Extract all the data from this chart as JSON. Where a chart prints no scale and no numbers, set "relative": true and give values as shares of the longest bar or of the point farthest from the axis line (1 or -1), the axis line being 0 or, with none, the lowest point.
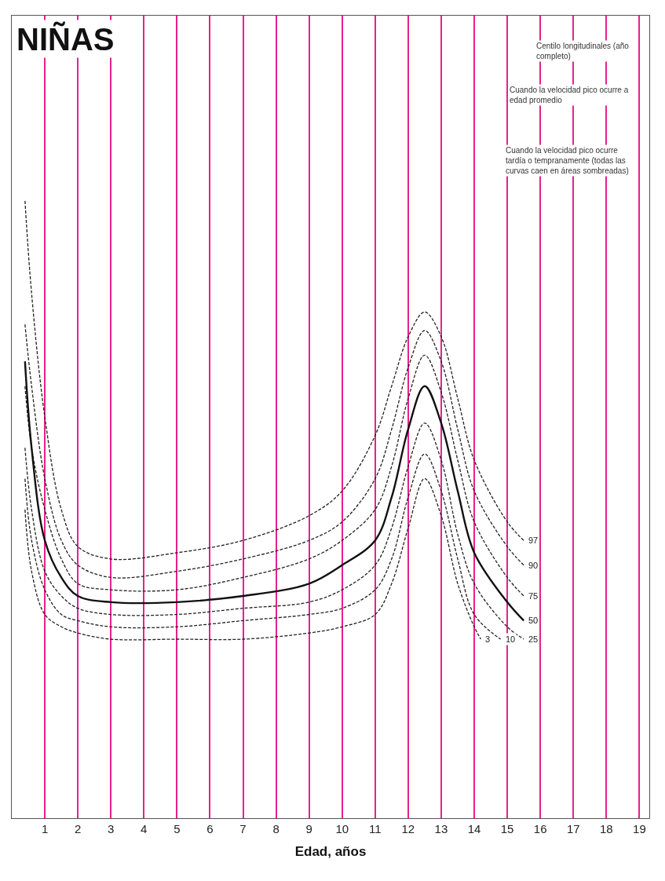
{
  "chart_data": {
    "type": "line",
    "title": "NIÑAS",
    "xlabel": "Edad, años",
    "relative": true,
    "xlim": [
      0,
      19.3
    ],
    "xticks": [
      1,
      2,
      3,
      4,
      5,
      6,
      7,
      8,
      9,
      10,
      11,
      12,
      13,
      14,
      15,
      16,
      17,
      18,
      19
    ],
    "grid": "x",
    "annotations": [
      "Centilo longitudinales (año completo)",
      "Cuando la velocidad pico ocurre a edad promedio",
      "Cuando la velocidad pico ocurre tardía o tempranamente (todas las curvas caen en áreas sombreadas)"
    ],
    "series": [
      {
        "name": "97",
        "color": "#222222",
        "line_style": "dashed",
        "x": [
          0.4,
          0.6,
          1,
          1.5,
          2,
          3,
          5,
          7,
          9,
          10,
          11,
          11.5,
          12,
          12.5,
          13,
          13.5,
          14,
          15,
          15.5
        ],
        "values": [
          1.0,
          0.85,
          0.65,
          0.5,
          0.44,
          0.42,
          0.43,
          0.45,
          0.49,
          0.53,
          0.62,
          0.7,
          0.78,
          0.82,
          0.78,
          0.68,
          0.58,
          0.48,
          0.45
        ]
      },
      {
        "name": "90",
        "color": "#222222",
        "line_style": "dashed",
        "x": [
          0.4,
          0.6,
          1,
          1.5,
          2,
          3,
          5,
          7,
          9,
          10,
          11,
          11.5,
          12,
          12.5,
          13,
          13.5,
          14,
          15,
          15.5
        ],
        "values": [
          0.8,
          0.7,
          0.55,
          0.45,
          0.41,
          0.39,
          0.4,
          0.42,
          0.45,
          0.48,
          0.55,
          0.63,
          0.73,
          0.79,
          0.74,
          0.63,
          0.53,
          0.44,
          0.41
        ]
      },
      {
        "name": "75",
        "color": "#222222",
        "line_style": "dashed",
        "x": [
          0.4,
          0.6,
          1,
          1.5,
          2,
          3,
          5,
          7,
          9,
          10,
          11,
          11.5,
          12,
          12.5,
          13,
          13.5,
          14,
          15,
          15.5
        ],
        "values": [
          0.7,
          0.6,
          0.5,
          0.42,
          0.38,
          0.37,
          0.37,
          0.39,
          0.42,
          0.45,
          0.5,
          0.57,
          0.68,
          0.75,
          0.69,
          0.58,
          0.48,
          0.39,
          0.36
        ]
      },
      {
        "name": "50",
        "color": "#111111",
        "line_style": "solid",
        "x": [
          0.4,
          0.6,
          1,
          1.5,
          2,
          3,
          5,
          7,
          9,
          10,
          11,
          11.5,
          12,
          12.5,
          13,
          13.5,
          14,
          15,
          15.5
        ],
        "values": [
          0.74,
          0.6,
          0.45,
          0.39,
          0.36,
          0.35,
          0.35,
          0.36,
          0.38,
          0.41,
          0.45,
          0.52,
          0.63,
          0.7,
          0.64,
          0.53,
          0.43,
          0.35,
          0.32
        ]
      },
      {
        "name": "25",
        "color": "#222222",
        "line_style": "dashed",
        "x": [
          0.4,
          0.6,
          1,
          1.5,
          2,
          3,
          5,
          7,
          9,
          10,
          11,
          11.5,
          12,
          12.5,
          13,
          13.5,
          14,
          15,
          15.5
        ],
        "values": [
          0.6,
          0.5,
          0.4,
          0.36,
          0.34,
          0.33,
          0.33,
          0.34,
          0.35,
          0.37,
          0.41,
          0.47,
          0.57,
          0.64,
          0.58,
          0.46,
          0.38,
          0.31,
          0.29
        ]
      },
      {
        "name": "10",
        "color": "#222222",
        "line_style": "dashed",
        "x": [
          0.4,
          0.6,
          1,
          1.5,
          2,
          3,
          5,
          7,
          9,
          10,
          11,
          11.5,
          12,
          12.5,
          13,
          13.5,
          14,
          14.8
        ],
        "values": [
          0.55,
          0.45,
          0.37,
          0.33,
          0.32,
          0.31,
          0.31,
          0.32,
          0.33,
          0.34,
          0.37,
          0.42,
          0.52,
          0.59,
          0.53,
          0.42,
          0.33,
          0.29
        ]
      },
      {
        "name": "3",
        "color": "#222222",
        "line_style": "dashed",
        "x": [
          0.4,
          0.6,
          1,
          1.5,
          2,
          3,
          5,
          7,
          9,
          10,
          11,
          11.5,
          12,
          12.5,
          13,
          13.5,
          14,
          14.2
        ],
        "values": [
          0.5,
          0.4,
          0.33,
          0.31,
          0.3,
          0.29,
          0.29,
          0.29,
          0.3,
          0.31,
          0.33,
          0.38,
          0.47,
          0.55,
          0.49,
          0.38,
          0.31,
          0.29
        ]
      }
    ]
  }
}
